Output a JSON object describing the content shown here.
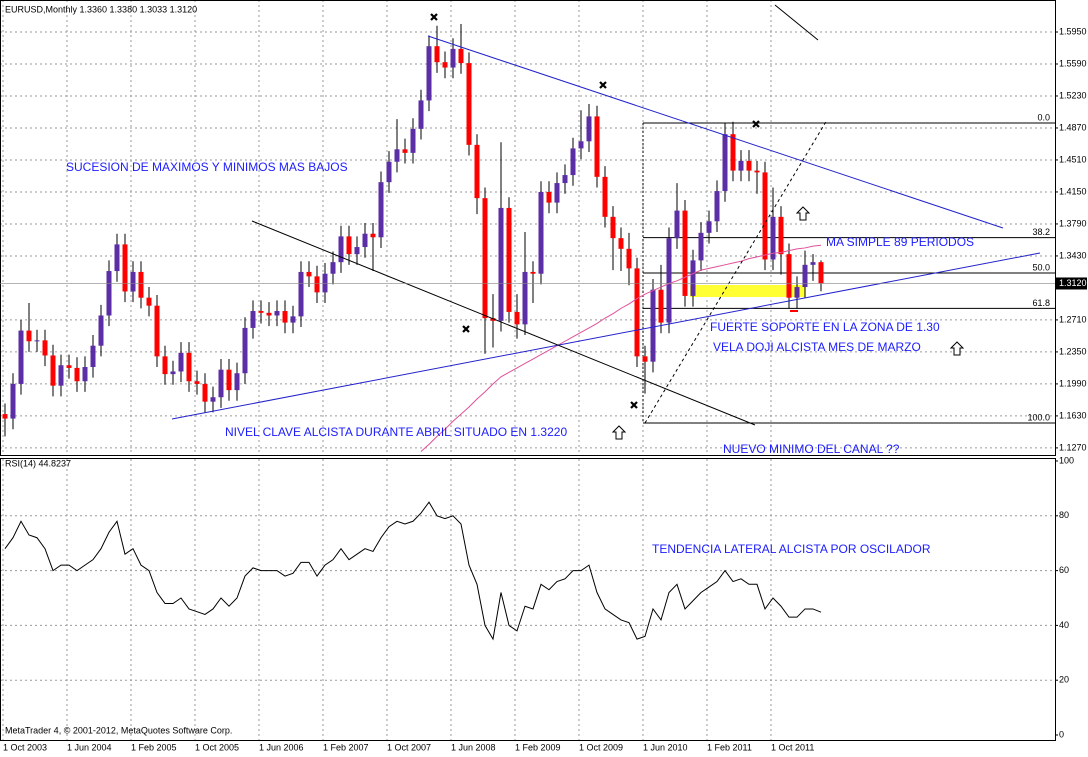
{
  "chart_data": [
    {
      "type": "candlestick",
      "title": "EURUSD,Monthly  1.3360 1.3380 1.3033 1.3120",
      "categories": [
        "1 Oct 2003",
        null,
        null,
        null,
        null,
        null,
        null,
        null,
        "1 Jun 2004",
        null,
        null,
        null,
        null,
        null,
        null,
        null,
        "1 Feb 2005",
        null,
        null,
        null,
        null,
        null,
        null,
        null,
        "1 Oct 2005",
        null,
        null,
        null,
        null,
        null,
        null,
        null,
        "1 Jun 2006",
        null,
        null,
        null,
        null,
        null,
        null,
        null,
        "1 Feb 2007",
        null,
        null,
        null,
        null,
        null,
        null,
        null,
        "1 Oct 2007",
        null,
        null,
        null,
        null,
        null,
        null,
        null,
        "1 Jun 2008",
        null,
        null,
        null,
        null,
        null,
        null,
        null,
        "1 Feb 2009",
        null,
        null,
        null,
        null,
        null,
        null,
        null,
        "1 Oct 2009",
        null,
        null,
        null,
        null,
        null,
        null,
        null,
        "1 Jun 2010",
        null,
        null,
        null,
        null,
        null,
        null,
        null,
        "1 Feb 2011",
        null,
        null,
        null,
        null,
        null,
        null,
        null,
        "1 Oct 2011",
        null,
        null,
        null,
        null,
        null,
        null
      ],
      "open": [
        1.165,
        1.16,
        1.199,
        1.259,
        1.247,
        1.248,
        1.231,
        1.197,
        1.22,
        1.217,
        1.202,
        1.218,
        1.242,
        1.276,
        1.326,
        1.356,
        1.303,
        1.325,
        1.296,
        1.287,
        1.23,
        1.21,
        1.213,
        1.234,
        1.202,
        1.199,
        1.179,
        1.184,
        1.215,
        1.192,
        1.211,
        1.262,
        1.281,
        1.279,
        1.276,
        1.281,
        1.268,
        1.275,
        1.325,
        1.32,
        1.302,
        1.323,
        1.336,
        1.365,
        1.345,
        1.353,
        1.368,
        1.364,
        1.426,
        1.449,
        1.463,
        1.459,
        1.486,
        1.518,
        1.579,
        1.561,
        1.555,
        1.576,
        1.56,
        1.468,
        1.408,
        1.273,
        1.27,
        1.397,
        1.28,
        1.266,
        1.325,
        1.323,
        1.415,
        1.403,
        1.425,
        1.434,
        1.464,
        1.472,
        1.5,
        1.432,
        1.387,
        1.363,
        1.351,
        1.329,
        1.23,
        1.224,
        1.305,
        1.268,
        1.363,
        1.394,
        1.298,
        1.338,
        1.369,
        1.382,
        1.416,
        1.48,
        1.439,
        1.45,
        1.439,
        1.437,
        1.339,
        1.387,
        1.345,
        1.296,
        1.308,
        1.333,
        1.336
      ],
      "high": [
        1.177,
        1.211,
        1.271,
        1.29,
        1.26,
        1.26,
        1.243,
        1.232,
        1.232,
        1.229,
        1.23,
        1.254,
        1.288,
        1.338,
        1.368,
        1.368,
        1.337,
        1.337,
        1.308,
        1.299,
        1.242,
        1.225,
        1.246,
        1.246,
        1.214,
        1.211,
        1.196,
        1.227,
        1.227,
        1.223,
        1.274,
        1.293,
        1.293,
        1.291,
        1.293,
        1.293,
        1.287,
        1.337,
        1.337,
        1.332,
        1.335,
        1.348,
        1.377,
        1.377,
        1.365,
        1.38,
        1.38,
        1.438,
        1.461,
        1.497,
        1.475,
        1.498,
        1.53,
        1.591,
        1.602,
        1.573,
        1.588,
        1.604,
        1.572,
        1.48,
        1.42,
        1.3,
        1.471,
        1.409,
        1.3,
        1.37,
        1.337,
        1.427,
        1.427,
        1.437,
        1.446,
        1.476,
        1.507,
        1.514,
        1.512,
        1.444,
        1.399,
        1.375,
        1.369,
        1.341,
        1.242,
        1.317,
        1.333,
        1.375,
        1.425,
        1.406,
        1.35,
        1.381,
        1.394,
        1.428,
        1.492,
        1.494,
        1.462,
        1.462,
        1.45,
        1.449,
        1.42,
        1.399,
        1.357,
        1.32,
        1.349,
        1.345,
        1.338
      ],
      "low": [
        1.14,
        1.148,
        1.187,
        1.235,
        1.235,
        1.219,
        1.185,
        1.185,
        1.205,
        1.19,
        1.19,
        1.206,
        1.23,
        1.264,
        1.314,
        1.291,
        1.291,
        1.284,
        1.275,
        1.218,
        1.198,
        1.198,
        1.201,
        1.19,
        1.187,
        1.167,
        1.167,
        1.172,
        1.18,
        1.18,
        1.199,
        1.25,
        1.267,
        1.264,
        1.264,
        1.256,
        1.256,
        1.263,
        1.308,
        1.29,
        1.29,
        1.311,
        1.324,
        1.333,
        1.333,
        1.341,
        1.326,
        1.352,
        1.414,
        1.437,
        1.447,
        1.447,
        1.474,
        1.506,
        1.549,
        1.543,
        1.543,
        1.548,
        1.456,
        1.39,
        1.233,
        1.24,
        1.258,
        1.268,
        1.25,
        1.254,
        1.29,
        1.311,
        1.391,
        1.391,
        1.413,
        1.422,
        1.452,
        1.46,
        1.42,
        1.375,
        1.327,
        1.326,
        1.31,
        1.218,
        1.188,
        1.212,
        1.256,
        1.256,
        1.351,
        1.286,
        1.286,
        1.326,
        1.357,
        1.37,
        1.404,
        1.427,
        1.427,
        1.427,
        1.413,
        1.327,
        1.327,
        1.322,
        1.284,
        1.284,
        1.296,
        1.315,
        1.3033
      ],
      "close": [
        1.16,
        1.199,
        1.259,
        1.247,
        1.248,
        1.231,
        1.197,
        1.22,
        1.217,
        1.202,
        1.218,
        1.242,
        1.276,
        1.326,
        1.356,
        1.303,
        1.325,
        1.296,
        1.287,
        1.23,
        1.21,
        1.213,
        1.234,
        1.202,
        1.199,
        1.179,
        1.184,
        1.215,
        1.192,
        1.211,
        1.262,
        1.281,
        1.279,
        1.276,
        1.281,
        1.268,
        1.275,
        1.325,
        1.32,
        1.302,
        1.323,
        1.336,
        1.365,
        1.345,
        1.353,
        1.368,
        1.364,
        1.426,
        1.449,
        1.463,
        1.459,
        1.486,
        1.518,
        1.579,
        1.561,
        1.555,
        1.576,
        1.56,
        1.468,
        1.408,
        1.273,
        1.27,
        1.397,
        1.28,
        1.266,
        1.325,
        1.323,
        1.415,
        1.403,
        1.425,
        1.434,
        1.464,
        1.472,
        1.5,
        1.432,
        1.387,
        1.363,
        1.351,
        1.329,
        1.23,
        1.224,
        1.305,
        1.268,
        1.363,
        1.394,
        1.298,
        1.338,
        1.369,
        1.382,
        1.416,
        1.48,
        1.439,
        1.45,
        1.439,
        1.437,
        1.339,
        1.387,
        1.345,
        1.296,
        1.308,
        1.333,
        1.336,
        1.312
      ],
      "up_color": "#5b2ea6",
      "down_color": "#ff0000",
      "ma_color": "#e0509a",
      "ma_values": [
        null,
        null,
        null,
        null,
        null,
        null,
        null,
        null,
        null,
        null,
        null,
        null,
        null,
        null,
        null,
        null,
        null,
        null,
        null,
        null,
        null,
        null,
        null,
        null,
        null,
        null,
        null,
        null,
        null,
        null,
        null,
        null,
        null,
        null,
        null,
        null,
        null,
        null,
        null,
        null,
        null,
        null,
        null,
        null,
        null,
        null,
        null,
        null,
        null,
        null,
        null,
        null,
        1.123,
        1.131,
        1.14,
        1.148,
        1.157,
        1.165,
        1.173,
        1.182,
        1.19,
        1.199,
        1.207,
        1.212,
        1.217,
        1.222,
        1.227,
        1.232,
        1.237,
        1.242,
        1.247,
        1.252,
        1.257,
        1.262,
        1.267,
        1.273,
        1.278,
        1.284,
        1.289,
        1.295,
        1.3,
        1.304,
        1.308,
        1.312,
        1.315,
        1.319,
        1.323,
        1.327,
        1.329,
        1.331,
        1.333,
        1.335,
        1.337,
        1.34,
        1.342,
        1.344,
        1.346,
        1.347,
        1.349,
        1.351,
        1.352,
        1.354,
        1.355
      ],
      "last_price": {
        "value": 1.312,
        "label": "1.3120"
      },
      "ylim": [
        1.119,
        1.631
      ],
      "yticks": [
        {
          "value": 1.595,
          "label": "1.5950"
        },
        {
          "value": 1.559,
          "label": "1.5590"
        },
        {
          "value": 1.523,
          "label": "1.5230"
        },
        {
          "value": 1.487,
          "label": "1.4870"
        },
        {
          "value": 1.451,
          "label": "1.4510"
        },
        {
          "value": 1.415,
          "label": "1.4150"
        },
        {
          "value": 1.379,
          "label": "1.3790"
        },
        {
          "value": 1.343,
          "label": "1.3430"
        },
        {
          "value": 1.271,
          "label": "1.2710"
        },
        {
          "value": 1.235,
          "label": "1.2350"
        },
        {
          "value": 1.199,
          "label": "1.1990"
        },
        {
          "value": 1.163,
          "label": "1.1630"
        },
        {
          "value": 1.127,
          "label": "1.1270"
        }
      ],
      "grid": true,
      "fib_levels": [
        {
          "value": 0,
          "label": "0.0"
        },
        {
          "value": 38.2,
          "label": "38.2"
        },
        {
          "value": 50,
          "label": "50.0"
        },
        {
          "value": 61.8,
          "label": "61.8"
        },
        {
          "value": 100,
          "label": "100.0"
        }
      ]
    },
    {
      "type": "line",
      "title": "RSI(14) 44.8237",
      "color": "#000000",
      "values": [
        68,
        72,
        78,
        73,
        72,
        68,
        60,
        62,
        62,
        60,
        62,
        64,
        68,
        74,
        78,
        66,
        68,
        62,
        60,
        52,
        48,
        48,
        50,
        46,
        45,
        44,
        46,
        50,
        47,
        50,
        58,
        61,
        60,
        60,
        60,
        58,
        59,
        63,
        63,
        58,
        62,
        64,
        68,
        64,
        66,
        68,
        67,
        72,
        76,
        78,
        77,
        78,
        81,
        85,
        80,
        79,
        80,
        77,
        62,
        55,
        40,
        35,
        52,
        40,
        38,
        47,
        46,
        55,
        53,
        56,
        57,
        60,
        60,
        62,
        52,
        46,
        44,
        42,
        41,
        35,
        36,
        46,
        42,
        52,
        55,
        46,
        49,
        52,
        54,
        56,
        60,
        56,
        57,
        55,
        55,
        46,
        50,
        47,
        43,
        43,
        46,
        46,
        44.8237
      ],
      "ylim": [
        0,
        100
      ],
      "yticks": [
        100,
        80,
        60,
        40,
        20,
        0
      ],
      "grid": true
    }
  ],
  "annotations": [
    "SUCESION DE MAXIMOS Y MINIMOS MAS BAJOS",
    "MA SIMPLE 89 PERIODOS",
    "FUERTE SOPORTE EN LA ZONA DE 1.30",
    "VELA DOJI ALCISTA MES DE MARZO",
    "NIVEL CLAVE ALCISTA DURANTE ABRIL SITUADO EN 1.3220",
    "NUEVO MINIMO DEL CANAL ??",
    "TENDENCIA LATERAL ALCISTA POR OSCILADOR"
  ],
  "footer": "MetaTrader 4, © 2001-2012, MetaQuotes Software Corp."
}
